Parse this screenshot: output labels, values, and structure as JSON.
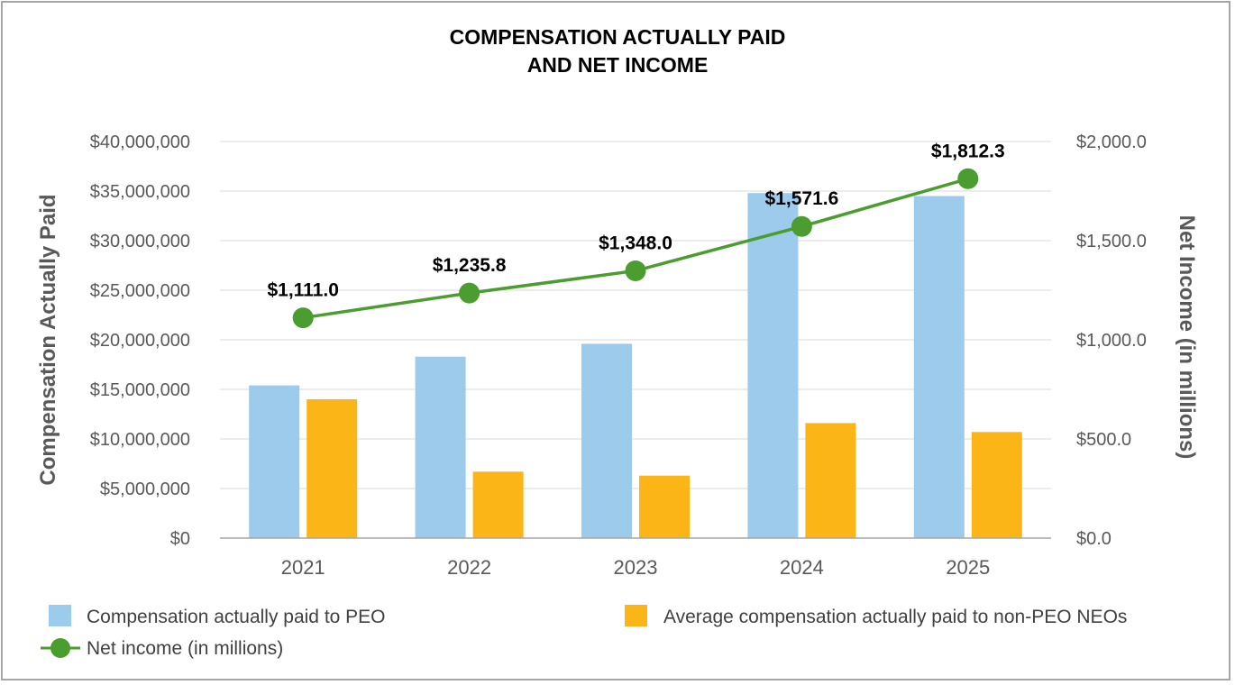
{
  "chart_data": {
    "type": "bar",
    "title_lines": [
      "COMPENSATION ACTUALLY PAID",
      "AND NET INCOME"
    ],
    "categories": [
      "2021",
      "2022",
      "2023",
      "2024",
      "2025"
    ],
    "ylabel": "Compensation Actually Paid",
    "y2label": "Net Income (in millions)",
    "ylim": [
      0,
      40000000
    ],
    "y2lim": [
      0,
      2000
    ],
    "yticks": [
      "$0",
      "$5,000,000",
      "$10,000,000",
      "$15,000,000",
      "$20,000,000",
      "$25,000,000",
      "$30,000,000",
      "$35,000,000",
      "$40,000,000"
    ],
    "y2ticks": [
      "$0.0",
      "$500.0",
      "$1,000.0",
      "$1,500.0",
      "$2,000.0"
    ],
    "grid": true,
    "series": [
      {
        "name": "Compensation actually paid to PEO",
        "kind": "bar",
        "axis": "left",
        "color": "#9dcbeb",
        "values": [
          15400000,
          18300000,
          19600000,
          34800000,
          34500000
        ]
      },
      {
        "name": "Average compensation actually paid to non-PEO NEOs",
        "kind": "bar",
        "axis": "left",
        "color": "#fbb517",
        "values": [
          14000000,
          6700000,
          6300000,
          11600000,
          10700000
        ]
      },
      {
        "name": "Net income (in millions)",
        "kind": "line",
        "axis": "right",
        "color": "#4a9d2e",
        "values": [
          1111.0,
          1235.8,
          1348.0,
          1571.6,
          1812.3
        ],
        "labels": [
          "$1,111.0",
          "$1,235.8",
          "$1,348.0",
          "$1,571.6",
          "$1,812.3"
        ]
      }
    ],
    "legend_position": "bottom"
  }
}
